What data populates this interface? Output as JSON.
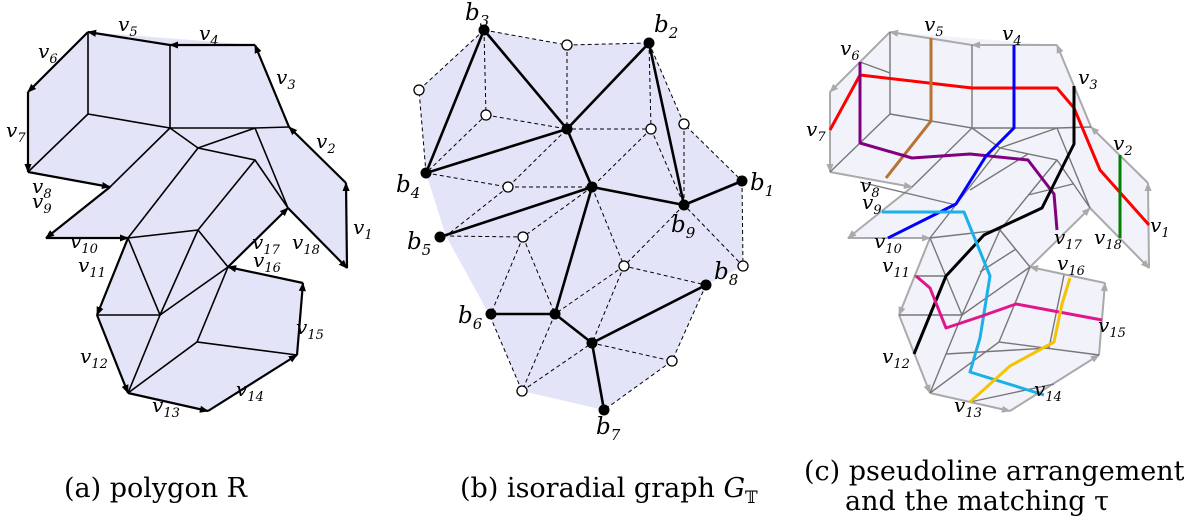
{
  "panel_a": {
    "caption": "(a) polygon R",
    "fill": "#e4e4f8",
    "labels": [
      {
        "id": "v1",
        "main": "v",
        "sub": "1"
      },
      {
        "id": "v2",
        "main": "v",
        "sub": "2"
      },
      {
        "id": "v3",
        "main": "v",
        "sub": "3"
      },
      {
        "id": "v4",
        "main": "v",
        "sub": "4"
      },
      {
        "id": "v5",
        "main": "v",
        "sub": "5"
      },
      {
        "id": "v6",
        "main": "v",
        "sub": "6"
      },
      {
        "id": "v7",
        "main": "v",
        "sub": "7"
      },
      {
        "id": "v8",
        "main": "v",
        "sub": "8"
      },
      {
        "id": "v9",
        "main": "v",
        "sub": "9"
      },
      {
        "id": "v10",
        "main": "v",
        "sub": "10"
      },
      {
        "id": "v11",
        "main": "v",
        "sub": "11"
      },
      {
        "id": "v12",
        "main": "v",
        "sub": "12"
      },
      {
        "id": "v13",
        "main": "v",
        "sub": "13"
      },
      {
        "id": "v14",
        "main": "v",
        "sub": "14"
      },
      {
        "id": "v15",
        "main": "v",
        "sub": "15"
      },
      {
        "id": "v16",
        "main": "v",
        "sub": "16"
      },
      {
        "id": "v17",
        "main": "v",
        "sub": "17"
      },
      {
        "id": "v18",
        "main": "v",
        "sub": "18"
      }
    ]
  },
  "panel_b": {
    "caption_prefix": "(b) isoradial graph ",
    "caption_symbol": "G",
    "caption_sub": "𝕋",
    "fill": "#e4e4f8",
    "labels": [
      {
        "id": "b1",
        "main": "b",
        "sub": "1"
      },
      {
        "id": "b2",
        "main": "b",
        "sub": "2"
      },
      {
        "id": "b3",
        "main": "b",
        "sub": "3"
      },
      {
        "id": "b4",
        "main": "b",
        "sub": "4"
      },
      {
        "id": "b5",
        "main": "b",
        "sub": "5"
      },
      {
        "id": "b6",
        "main": "b",
        "sub": "6"
      },
      {
        "id": "b7",
        "main": "b",
        "sub": "7"
      },
      {
        "id": "b8",
        "main": "b",
        "sub": "8"
      },
      {
        "id": "b9",
        "main": "b",
        "sub": "9"
      }
    ]
  },
  "panel_c": {
    "caption_line1": "(c) pseudoline arrangement",
    "caption_line2": "and the matching τ",
    "fill": "#f2f2fb",
    "colors": {
      "v1": "#ff0000",
      "v2": "#008000",
      "v3": "#000000",
      "v4": "#0000ff",
      "v5": "#b87333",
      "v6": "#800080",
      "v7": "#ff0000",
      "v8": "#b87333",
      "v9": "#1ab0e8",
      "v10": "#0000ff",
      "v11": "#e0168c",
      "v12": "#000000",
      "v13": "#f5c400",
      "v14": "#1ab0e8",
      "v15": "#e0168c",
      "v16": "#f5c400",
      "v17": "#800080",
      "v18": "#008000"
    }
  }
}
